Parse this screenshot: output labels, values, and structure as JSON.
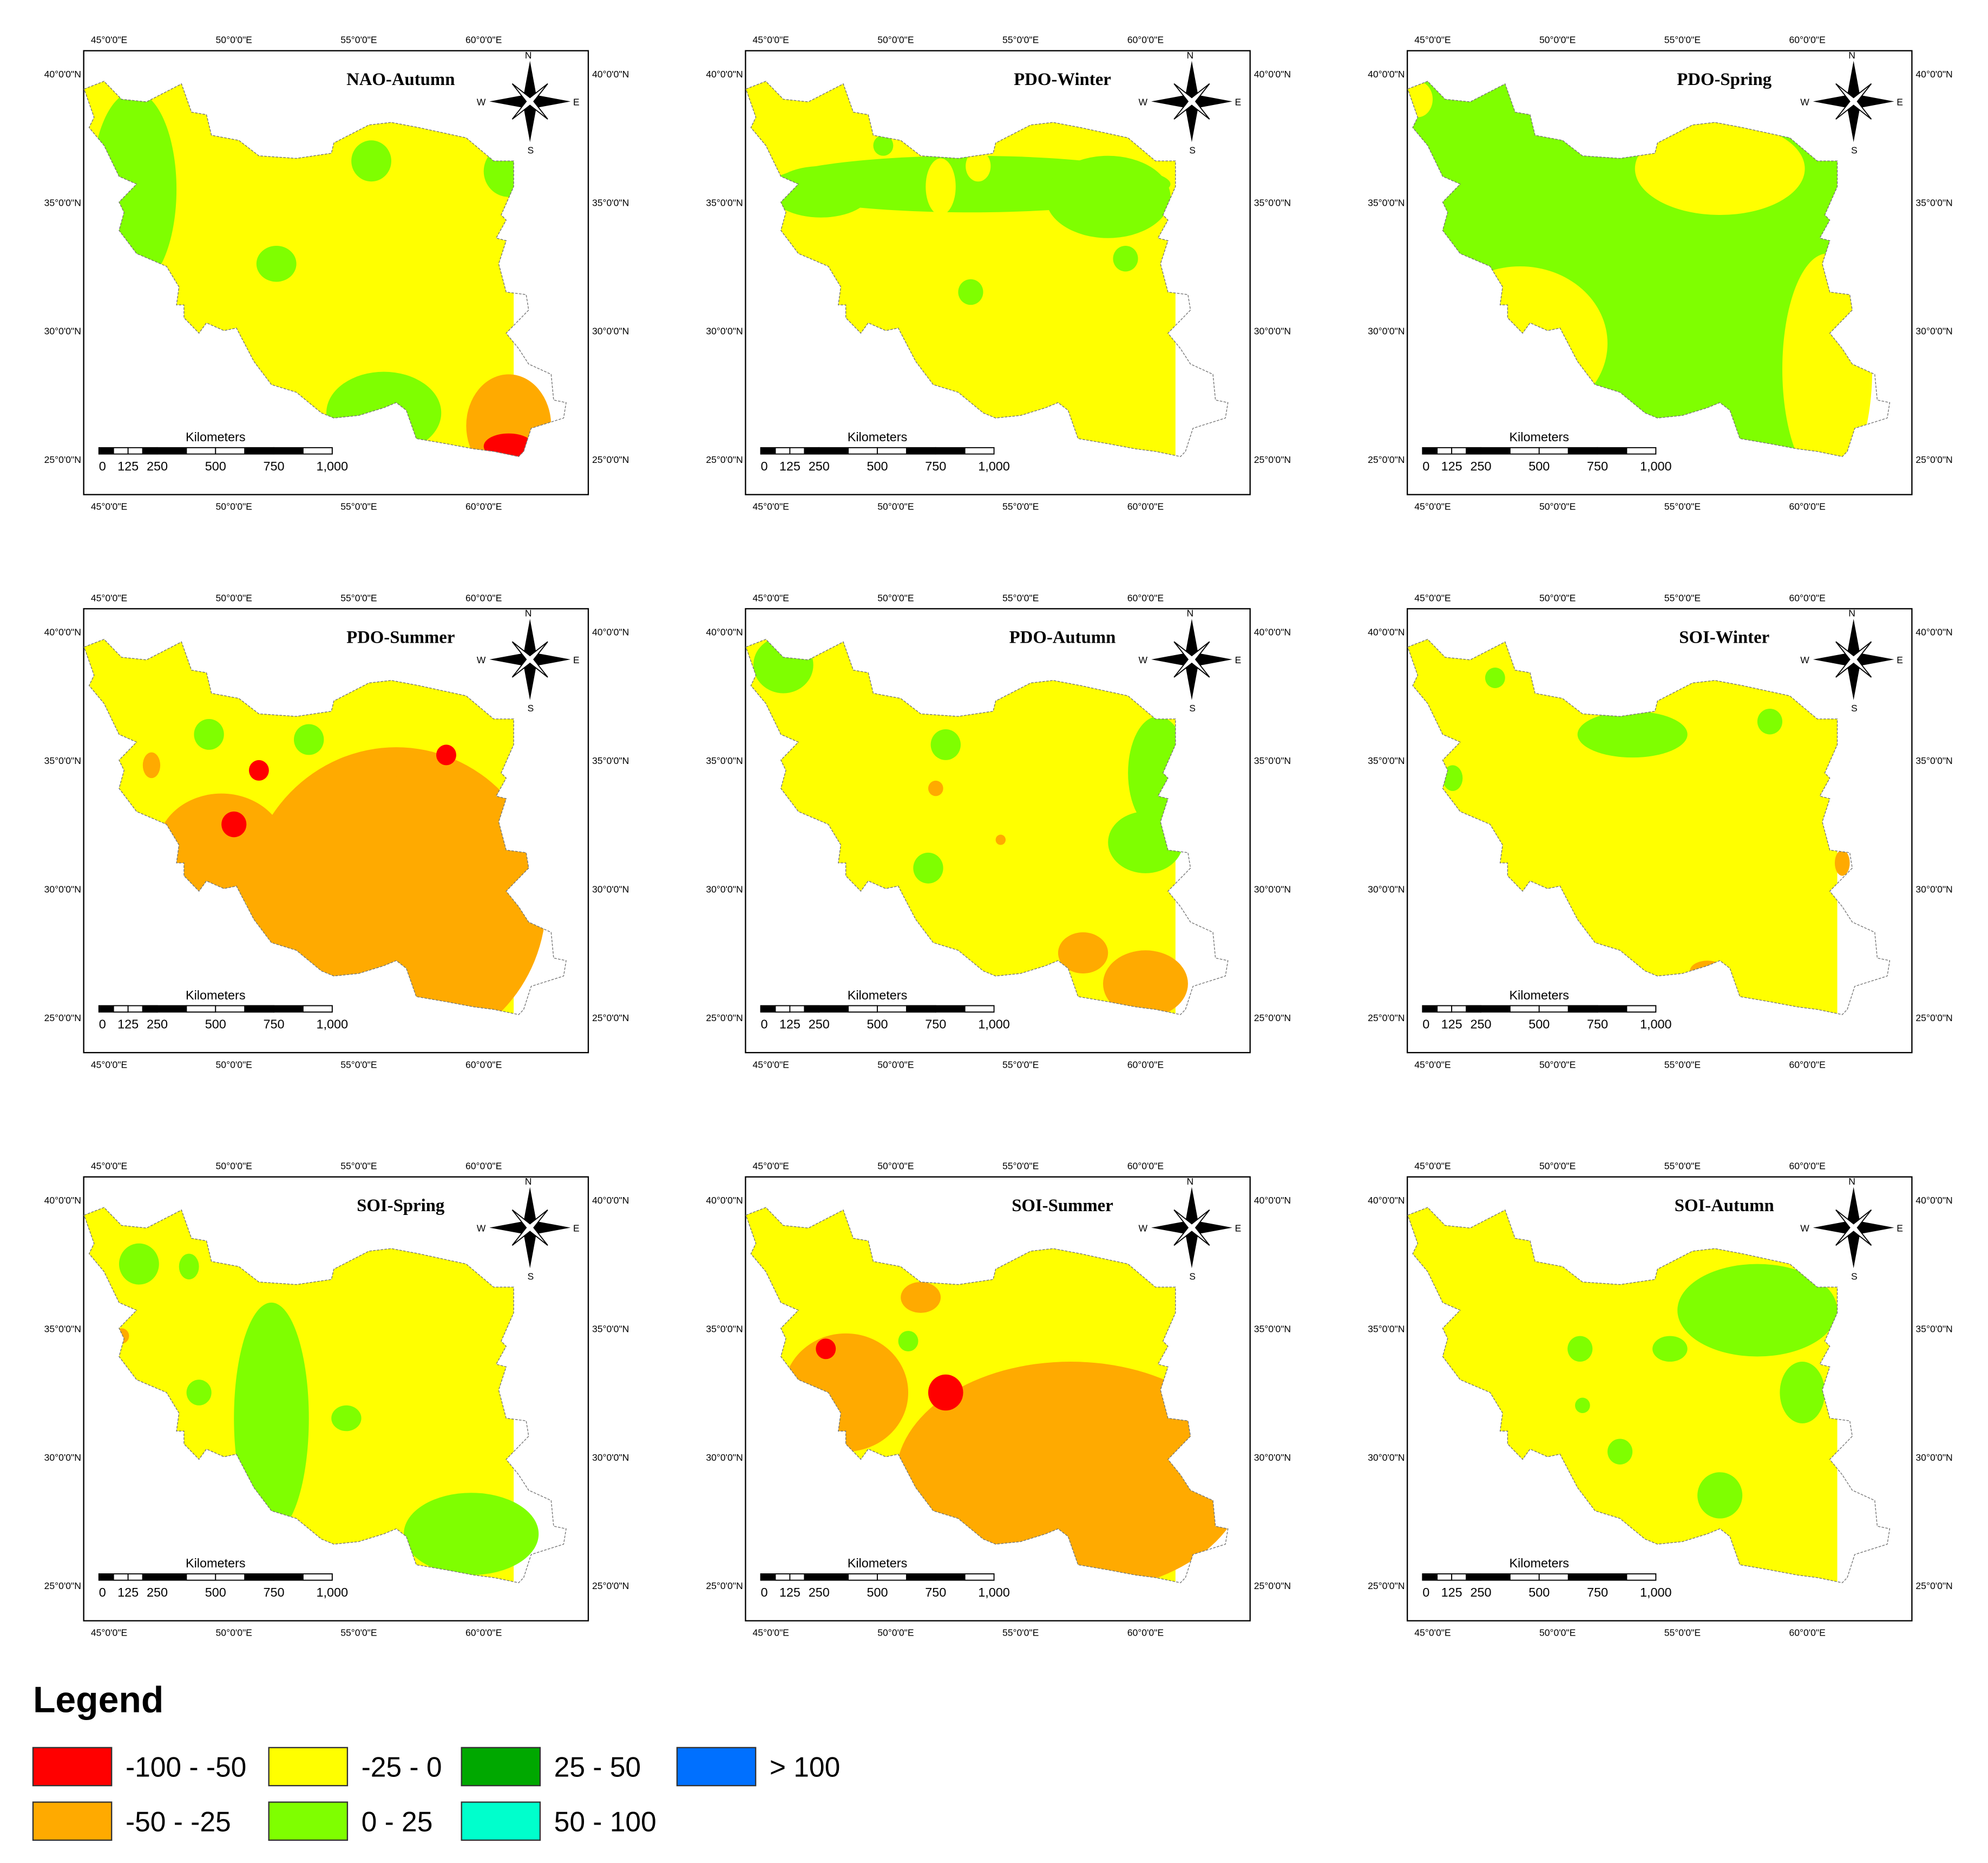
{
  "panels": [
    {
      "title": "NAO-Autumn"
    },
    {
      "title": "PDO-Winter"
    },
    {
      "title": "PDO-Spring"
    },
    {
      "title": "PDO-Summer"
    },
    {
      "title": "PDO-Autumn"
    },
    {
      "title": "SOI-Winter"
    },
    {
      "title": "SOI-Spring"
    },
    {
      "title": "SOI-Summer"
    },
    {
      "title": "SOI-Autumn"
    }
  ],
  "longitude_labels": [
    "45°0'0\"E",
    "50°0'0\"E",
    "55°0'0\"E",
    "60°0'0\"E"
  ],
  "latitude_labels": [
    "40°0'0\"N",
    "35°0'0\"N",
    "30°0'0\"N",
    "25°0'0\"N"
  ],
  "scale_bar": {
    "title": "Kilometers",
    "labels": [
      "0",
      "125",
      "250",
      "500",
      "750",
      "1,000"
    ]
  },
  "compass": {
    "north": "N",
    "east": "E",
    "south": "S",
    "west": "W"
  },
  "legend": {
    "title": "Legend",
    "items": [
      {
        "label": "-100 - -50",
        "color": "#ff0000"
      },
      {
        "label": "-50 - -25",
        "color": "#ffaa00"
      },
      {
        "label": "-25 - 0",
        "color": "#ffff00"
      },
      {
        "label": "0 - 25",
        "color": "#7fff00"
      },
      {
        "label": "25 - 50",
        "color": "#00a800"
      },
      {
        "label": "50 - 100",
        "color": "#00ffcc"
      },
      {
        "label": "> 100",
        "color": "#0070ff"
      }
    ]
  }
}
